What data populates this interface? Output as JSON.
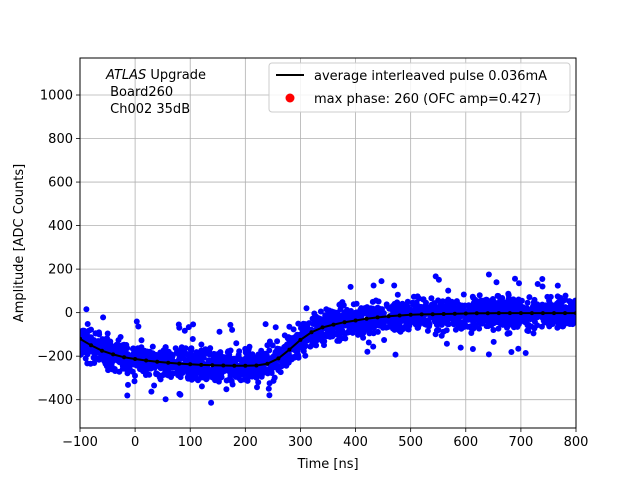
{
  "chart_data": {
    "type": "scatter",
    "title": "",
    "xlabel": "Time [ns]",
    "ylabel": "Amplitude [ADC Counts]",
    "xlim": [
      -100,
      800
    ],
    "ylim": [
      -530,
      1170
    ],
    "xticks": [
      -100,
      0,
      100,
      200,
      300,
      400,
      500,
      600,
      700,
      800
    ],
    "yticks": [
      -400,
      -200,
      0,
      200,
      400,
      600,
      800,
      1000
    ],
    "grid": true,
    "annotation": {
      "line1_italic": "ATLAS",
      "line1_rest": " Upgrade",
      "line2": " Board260",
      "line3": " Ch002 35dB"
    },
    "legend": {
      "placement": "top-right",
      "entries": [
        {
          "label": "average interleaved pulse 0.036mA",
          "marker": "line",
          "color": "#000000"
        },
        {
          "label": "max phase: 260 (OFC amp=0.427)",
          "marker": "circle",
          "color": "#ff0000"
        }
      ]
    },
    "series": [
      {
        "name": "samples",
        "kind": "scatter",
        "color": "#0000ff",
        "noise_sigma": 35,
        "outlier_range": [
          -460,
          225
        ]
      },
      {
        "name": "average interleaved pulse 0.036mA",
        "kind": "line",
        "color": "#000000",
        "x": [
          -100,
          -80,
          -60,
          -40,
          -20,
          0,
          20,
          40,
          60,
          80,
          100,
          120,
          140,
          160,
          180,
          200,
          220,
          240,
          260,
          280,
          300,
          320,
          340,
          360,
          380,
          400,
          420,
          440,
          460,
          480,
          500,
          520,
          540,
          560,
          580,
          600,
          620,
          640,
          660,
          680,
          700,
          720,
          740,
          760,
          780,
          800
        ],
        "y": [
          -120,
          -150,
          -175,
          -192,
          -205,
          -213,
          -220,
          -226,
          -230,
          -234,
          -237,
          -240,
          -242,
          -243,
          -244,
          -244,
          -243,
          -235,
          -210,
          -170,
          -125,
          -90,
          -68,
          -55,
          -44,
          -36,
          -28,
          -22,
          -17,
          -13,
          -10,
          -8,
          -7,
          -6,
          -5,
          -4,
          -3,
          -3,
          -2,
          -2,
          -2,
          -2,
          -2,
          -2,
          -2,
          -2
        ]
      }
    ]
  }
}
